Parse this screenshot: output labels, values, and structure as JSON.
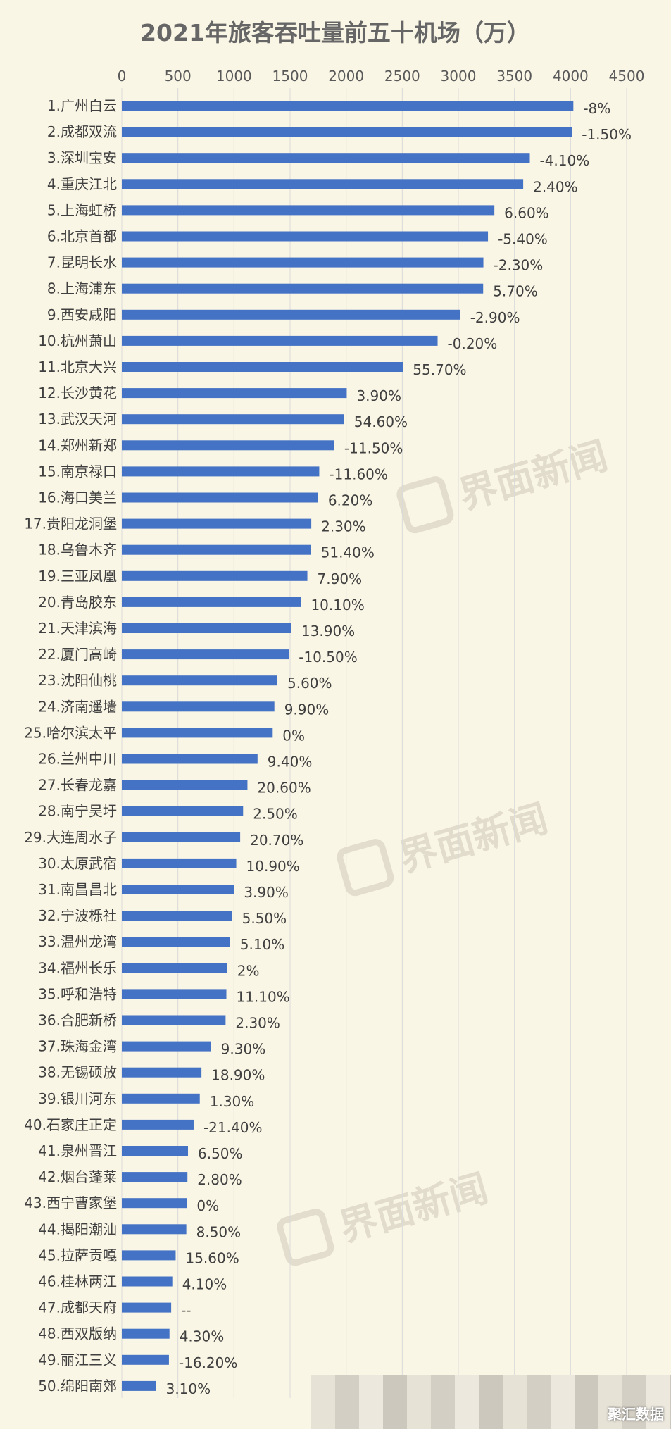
{
  "chart_data": {
    "type": "bar",
    "orientation": "horizontal",
    "title": "2021年旅客吞吐量前五十机场（万）",
    "xlabel": "",
    "ylabel": "",
    "xlim": [
      0,
      4500
    ],
    "xticks": [
      "0",
      "500",
      "1000",
      "1500",
      "2000",
      "2500",
      "3000",
      "3500",
      "4000",
      "4500"
    ],
    "grid": true,
    "bar_color": "#4472c4",
    "categories": [
      "1.广州白云",
      "2.成都双流",
      "3.深圳宝安",
      "4.重庆江北",
      "5.上海虹桥",
      "6.北京首都",
      "7.昆明长水",
      "8.上海浦东",
      "9.西安咸阳",
      "10.杭州萧山",
      "11.北京大兴",
      "12.长沙黄花",
      "13.武汉天河",
      "14.郑州新郑",
      "15.南京禄口",
      "16.海口美兰",
      "17.贵阳龙洞堡",
      "18.乌鲁木齐",
      "19.三亚凤凰",
      "20.青岛胶东",
      "21.天津滨海",
      "22.厦门高崎",
      "23.沈阳仙桃",
      "24.济南遥墙",
      "25.哈尔滨太平",
      "26.兰州中川",
      "27.长春龙嘉",
      "28.南宁吴圩",
      "29.大连周水子",
      "30.太原武宿",
      "31.南昌昌北",
      "32.宁波栎社",
      "33.温州龙湾",
      "34.福州长乐",
      "35.呼和浩特",
      "36.合肥新桥",
      "37.珠海金湾",
      "38.无锡硕放",
      "39.银川河东",
      "40.石家庄正定",
      "41.泉州晋江",
      "42.烟台蓬莱",
      "43.西宁曹家堡",
      "44.揭阳潮汕",
      "45.拉萨贡嘎",
      "46.桂林两江",
      "47.成都天府",
      "48.西双版纳",
      "49.丽江三义",
      "50.绵阳南郊"
    ],
    "values": [
      4025,
      4012,
      3637,
      3578,
      3321,
      3264,
      3223,
      3221,
      3017,
      2815,
      2506,
      2005,
      1982,
      1895,
      1760,
      1750,
      1689,
      1686,
      1654,
      1597,
      1512,
      1489,
      1387,
      1360,
      1345,
      1210,
      1120,
      1081,
      1055,
      1020,
      1000,
      983,
      965,
      940,
      932,
      925,
      795,
      710,
      695,
      640,
      590,
      585,
      580,
      575,
      480,
      450,
      440,
      425,
      420,
      305
    ],
    "data_labels": [
      "-8%",
      "-1.50%",
      "-4.10%",
      "2.40%",
      "6.60%",
      "-5.40%",
      "-2.30%",
      "5.70%",
      "-2.90%",
      "-0.20%",
      "55.70%",
      "3.90%",
      "54.60%",
      "-11.50%",
      "-11.60%",
      "6.20%",
      "2.30%",
      "51.40%",
      "7.90%",
      "10.10%",
      "13.90%",
      "-10.50%",
      "5.60%",
      "9.90%",
      "0%",
      "9.40%",
      "20.60%",
      "2.50%",
      "20.70%",
      "10.90%",
      "3.90%",
      "5.50%",
      "5.10%",
      "2%",
      "11.10%",
      "2.30%",
      "9.30%",
      "18.90%",
      "1.30%",
      "-21.40%",
      "6.50%",
      "2.80%",
      "0%",
      "8.50%",
      "15.60%",
      "4.10%",
      "--",
      "4.30%",
      "-16.20%",
      "3.10%"
    ]
  },
  "watermark": {
    "text": "界面新闻",
    "color": "#d9d4c4"
  },
  "footer": {
    "brand": "聚汇数据"
  }
}
